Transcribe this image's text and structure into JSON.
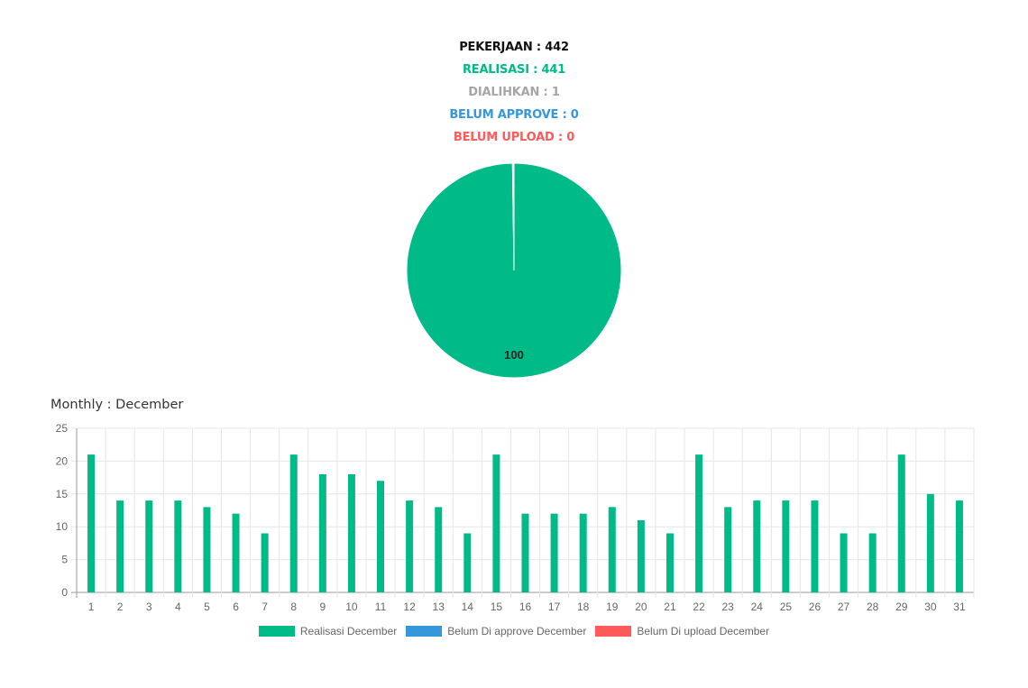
{
  "summary": {
    "pekerjaan": "PEKERJAAN : 442",
    "realisasi": "REALISASI : 441",
    "dialihkan": "DIALIHKAN : 1",
    "belum_approve": "BELUM APPROVE : 0",
    "belum_upload": "BELUM UPLOAD : 0"
  },
  "colors": {
    "black": "#111111",
    "green": "#00BB88",
    "gray": "#A6A6A6",
    "blue": "#3498DB",
    "red": "#FF5A5A"
  },
  "chart_data": [
    {
      "type": "pie",
      "slices": [
        {
          "label": "",
          "value": 441,
          "color": "#00BB88"
        },
        {
          "label": "",
          "value": 1,
          "color": "#ffffff"
        }
      ],
      "data_label": "100"
    },
    {
      "type": "bar",
      "title": "Monthly : December",
      "categories": [
        "1",
        "2",
        "3",
        "4",
        "5",
        "6",
        "7",
        "8",
        "9",
        "10",
        "11",
        "12",
        "13",
        "14",
        "15",
        "16",
        "17",
        "18",
        "19",
        "20",
        "21",
        "22",
        "23",
        "24",
        "25",
        "26",
        "27",
        "28",
        "29",
        "30",
        "31"
      ],
      "series": [
        {
          "name": "Realisasi December",
          "color": "#00BB88",
          "values": [
            21,
            14,
            14,
            14,
            13,
            12,
            9,
            21,
            18,
            18,
            17,
            14,
            13,
            9,
            21,
            12,
            12,
            12,
            13,
            11,
            9,
            21,
            13,
            14,
            14,
            14,
            9,
            9,
            21,
            15,
            14
          ]
        },
        {
          "name": "Belum Di approve December",
          "color": "#3498DB",
          "values": [
            0,
            0,
            0,
            0,
            0,
            0,
            0,
            0,
            0,
            0,
            0,
            0,
            0,
            0,
            0,
            0,
            0,
            0,
            0,
            0,
            0,
            0,
            0,
            0,
            0,
            0,
            0,
            0,
            0,
            0,
            0
          ]
        },
        {
          "name": "Belum Di upload December",
          "color": "#FF5A5A",
          "values": [
            0,
            0,
            0,
            0,
            0,
            0,
            0,
            0,
            0,
            0,
            0,
            0,
            0,
            0,
            0,
            0,
            0,
            0,
            0,
            0,
            0,
            0,
            0,
            0,
            0,
            0,
            0,
            0,
            0,
            0,
            0
          ]
        }
      ],
      "ylim": [
        0,
        25
      ],
      "yticks": [
        "0",
        "5",
        "10",
        "15",
        "20",
        "25"
      ],
      "grid": true,
      "legend_position": "bottom"
    }
  ]
}
